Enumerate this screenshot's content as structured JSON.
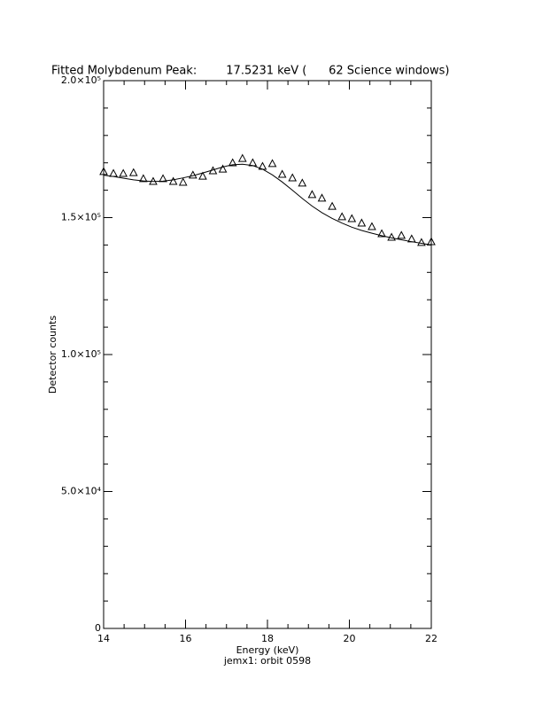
{
  "chart_data": {
    "type": "line",
    "title": "Fitted Molybdenum Peak:        17.5231 keV (      62 Science windows)",
    "x_label": "Energy (keV)",
    "subtitle": "jemx1: orbit 0598",
    "y_label": "Detector counts",
    "xlim": [
      14,
      22
    ],
    "xticks": [
      14,
      16,
      18,
      20,
      22
    ],
    "ylim": [
      0,
      200000
    ],
    "yticks": [
      {
        "value": 0,
        "label": "0"
      },
      {
        "value": 50000,
        "label": "5.0×10⁴"
      },
      {
        "value": 100000,
        "label": "1.0×10⁵"
      },
      {
        "value": 150000,
        "label": "1.5×10⁵"
      },
      {
        "value": 200000,
        "label": "2.0×10⁵"
      }
    ],
    "minor_ticks": true,
    "color": "#000000",
    "series": [
      {
        "marker": "triangle",
        "x": [
          14,
          14.24,
          14.48,
          14.73,
          14.97,
          15.21,
          15.45,
          15.7,
          15.94,
          16.18,
          16.42,
          16.67,
          16.91,
          17.15,
          17.39,
          17.64,
          17.88,
          18.12,
          18.36,
          18.61,
          18.85,
          19.09,
          19.33,
          19.58,
          19.82,
          20.06,
          20.3,
          20.55,
          20.79,
          21.03,
          21.27,
          21.52,
          21.76,
          22
        ],
        "values": [
          166700,
          166000,
          166000,
          166300,
          164100,
          163100,
          164100,
          163100,
          162800,
          165400,
          165000,
          167000,
          167600,
          169900,
          171500,
          169900,
          168600,
          169600,
          165700,
          164400,
          162500,
          158300,
          157000,
          154000,
          150200,
          149500,
          147900,
          146600,
          144000,
          142700,
          143400,
          142100,
          140800,
          141100
        ]
      },
      {
        "marker": "none",
        "x": [
          14,
          14.24,
          14.48,
          14.73,
          14.97,
          15.21,
          15.45,
          15.7,
          15.94,
          16.18,
          16.42,
          16.67,
          16.91,
          17.15,
          17.39,
          17.64,
          17.88,
          18.12,
          18.36,
          18.61,
          18.85,
          19.09,
          19.33,
          19.58,
          19.82,
          20.06,
          20.3,
          20.55,
          20.79,
          21.03,
          21.27,
          21.52,
          21.76,
          22
        ],
        "values": [
          165500,
          165000,
          164400,
          163800,
          163400,
          163200,
          163300,
          163800,
          164500,
          165300,
          166300,
          167400,
          168500,
          169300,
          169500,
          169000,
          167700,
          165600,
          163000,
          160000,
          157000,
          154200,
          151800,
          149700,
          148000,
          146500,
          145300,
          144300,
          143400,
          142600,
          141900,
          141200,
          140600,
          140000
        ]
      }
    ]
  }
}
